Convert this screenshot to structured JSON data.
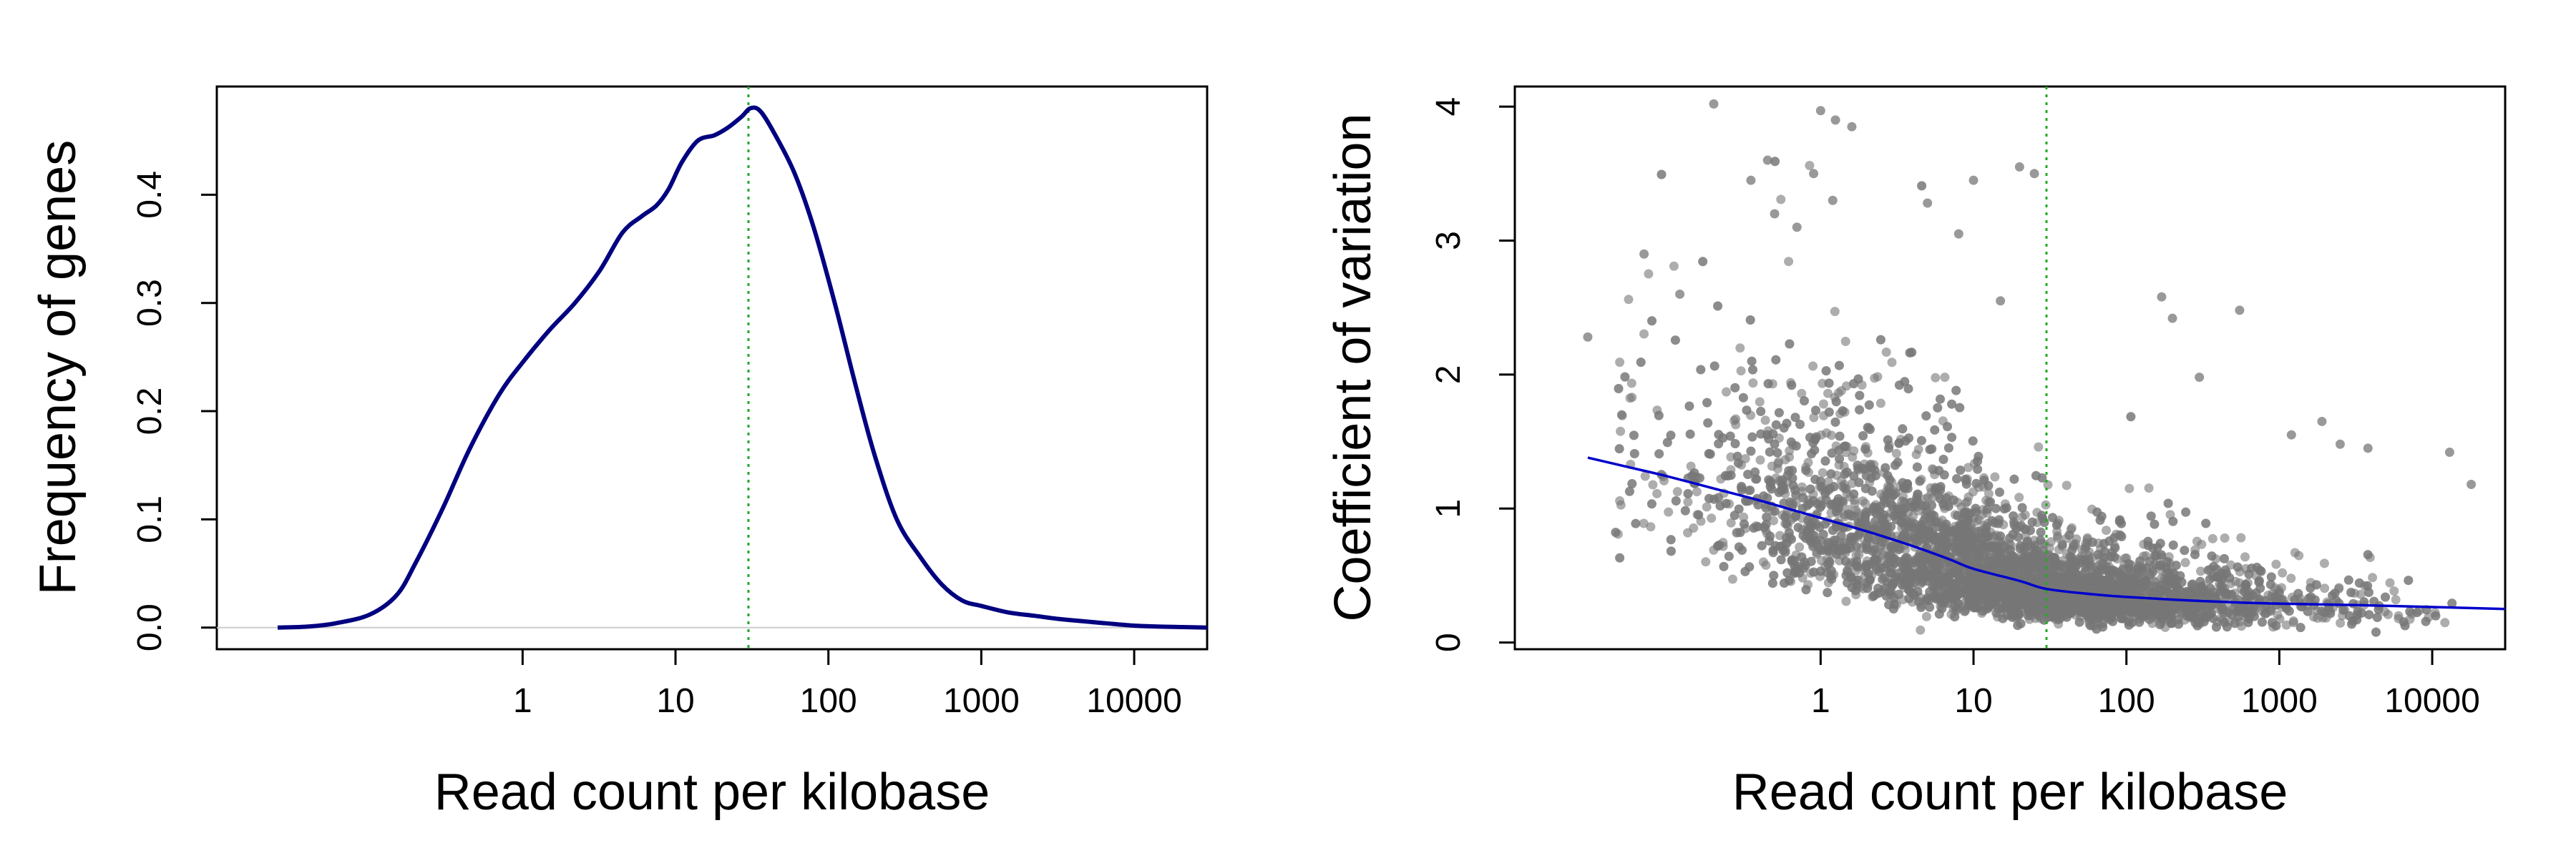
{
  "chart_data": [
    {
      "type": "line",
      "xlabel": "Read count per kilobase",
      "ylabel": "Frequency of genes",
      "x_scale": "log10",
      "xlim": [
        0.01,
        30000
      ],
      "ylim": [
        -0.02,
        0.5
      ],
      "x_ticks": [
        1,
        10,
        100,
        1000,
        10000
      ],
      "x_tick_labels": [
        "1",
        "10",
        "100",
        "1000",
        "10000"
      ],
      "y_ticks": [
        0.0,
        0.1,
        0.2,
        0.3,
        0.4
      ],
      "y_tick_labels": [
        "0.0",
        "0.1",
        "0.2",
        "0.3",
        "0.4"
      ],
      "grid": false,
      "legend": "none",
      "line_color": "#000080",
      "vline": {
        "x": 30,
        "color": "#22aa22",
        "style": "dotted"
      },
      "zero_line_color": "#cccccc",
      "series": [
        {
          "x": [
            0.025,
            0.04,
            0.06,
            0.1,
            0.15,
            0.2,
            0.3,
            0.45,
            0.7,
            1.0,
            1.5,
            2.2,
            3.2,
            4.5,
            6.0,
            7.5,
            9.0,
            11,
            14,
            18,
            22,
            27,
            31,
            36,
            45,
            60,
            80,
            110,
            150,
            200,
            280,
            400,
            550,
            750,
            1000,
            1500,
            2200,
            3200,
            4500,
            6500,
            9500,
            14000,
            20000,
            30000
          ],
          "y": [
            0.0,
            0.001,
            0.004,
            0.012,
            0.03,
            0.06,
            0.11,
            0.165,
            0.215,
            0.245,
            0.275,
            0.3,
            0.33,
            0.365,
            0.38,
            0.39,
            0.405,
            0.43,
            0.45,
            0.455,
            0.462,
            0.472,
            0.48,
            0.477,
            0.455,
            0.42,
            0.37,
            0.3,
            0.225,
            0.16,
            0.1,
            0.065,
            0.04,
            0.025,
            0.02,
            0.014,
            0.011,
            0.008,
            0.006,
            0.004,
            0.002,
            0.001,
            0.0005,
            0.0
          ]
        }
      ]
    },
    {
      "type": "scatter",
      "xlabel": "Read count per kilobase",
      "ylabel": "Coefficient of variation",
      "x_scale": "log10",
      "xlim": [
        0.01,
        30000
      ],
      "ylim": [
        -0.05,
        4.15
      ],
      "x_ticks": [
        1,
        10,
        100,
        1000,
        10000
      ],
      "x_tick_labels": [
        "1",
        "10",
        "100",
        "1000",
        "10000"
      ],
      "y_ticks": [
        0,
        1,
        2,
        3,
        4
      ],
      "y_tick_labels": [
        "0",
        "1",
        "2",
        "3",
        "4"
      ],
      "grid": false,
      "legend": "none",
      "point_color": "#777777",
      "trend_color": "#0000cc",
      "vline": {
        "x": 30,
        "color": "#22aa22",
        "style": "dotted"
      },
      "trend": {
        "x": [
          0.03,
          0.06,
          0.1,
          0.2,
          0.4,
          0.7,
          1.0,
          2,
          4,
          7,
          10,
          20,
          30,
          60,
          100,
          200,
          500,
          1000,
          3000,
          10000,
          30000
        ],
        "y": [
          1.38,
          1.3,
          1.24,
          1.15,
          1.06,
          0.98,
          0.93,
          0.83,
          0.72,
          0.62,
          0.55,
          0.46,
          0.4,
          0.36,
          0.34,
          0.32,
          0.3,
          0.29,
          0.28,
          0.265,
          0.25
        ]
      },
      "outlier_points": {
        "x": [
          0.2,
          0.45,
          0.35,
          1.0,
          1.25,
          0.9,
          1.6,
          1.2,
          0.5,
          0.7,
          20,
          25,
          10,
          170,
          200,
          550,
          1200,
          1900,
          2500,
          3800,
          13000,
          18000,
          0.03,
          0.05,
          0.07,
          0.12,
          5,
          8,
          15,
          300
        ],
        "y": [
          4.02,
          3.6,
          3.45,
          3.97,
          3.9,
          3.5,
          3.85,
          3.3,
          3.2,
          3.1,
          3.55,
          3.5,
          3.45,
          2.58,
          2.42,
          2.48,
          1.55,
          1.65,
          1.48,
          1.45,
          1.42,
          1.18,
          2.28,
          1.7,
          2.9,
          2.6,
          3.28,
          3.05,
          2.55,
          1.98
        ]
      }
    }
  ]
}
